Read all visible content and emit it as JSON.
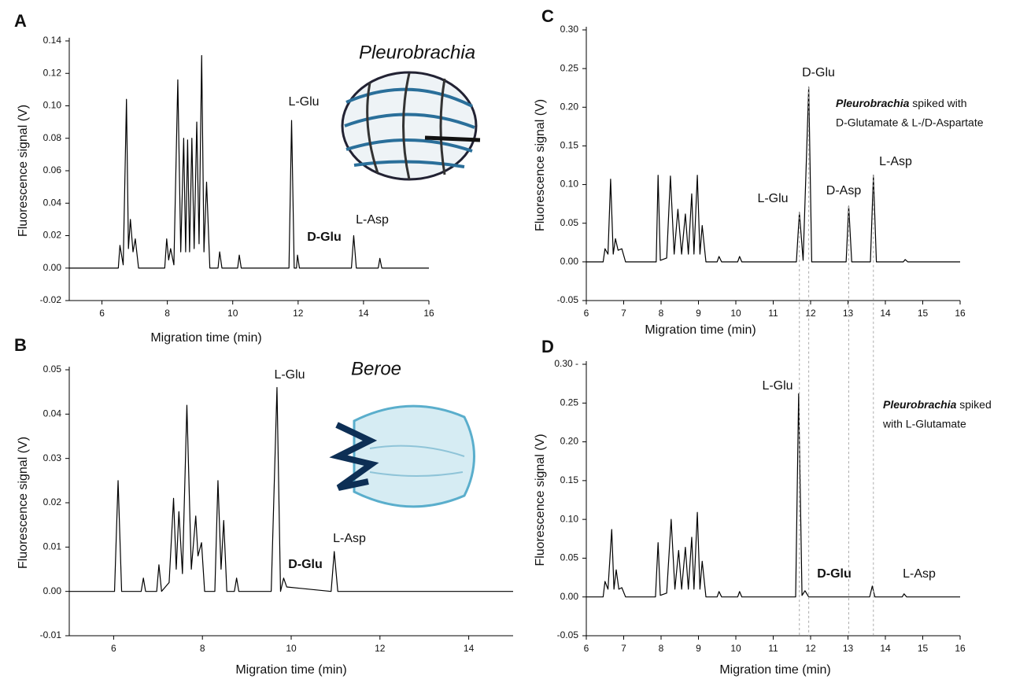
{
  "chart_data": [
    {
      "type": "line",
      "panel_label": "A",
      "species": "Pleurobrachia",
      "xlabel": "Migration time (min)",
      "ylabel": "Fluorescence signal (V)",
      "xlim": [
        5,
        16
      ],
      "xticks": [
        6,
        8,
        10,
        12,
        14,
        16
      ],
      "ylim": [
        -0.02,
        0.14
      ],
      "yticks": [
        -0.02,
        {
          "value": 0,
          "label": "0.00"
        },
        0.02,
        0.04,
        0.06,
        0.08,
        {
          "value": 0.1,
          "label": "0.10"
        },
        0.12,
        0.14
      ],
      "color": "#000000",
      "x": [
        5,
        6.5,
        6.55,
        6.65,
        6.75,
        6.81,
        6.87,
        6.95,
        7.02,
        7.12,
        7.92,
        7.98,
        8.04,
        8.1,
        8.2,
        8.32,
        8.41,
        8.5,
        8.56,
        8.62,
        8.68,
        8.75,
        8.82,
        8.9,
        8.97,
        9.05,
        9.12,
        9.2,
        9.3,
        9.55,
        9.6,
        9.67,
        10.15,
        10.2,
        10.26,
        11.72,
        11.8,
        11.88,
        11.95,
        11.98,
        12.04,
        13.63,
        13.7,
        13.78,
        14.45,
        14.5,
        14.56,
        16
      ],
      "values": [
        0,
        0,
        0.014,
        0.002,
        0.104,
        0.012,
        0.03,
        0.01,
        0.018,
        0,
        0,
        0.018,
        0.005,
        0.012,
        0.002,
        0.116,
        0.01,
        0.08,
        0.01,
        0.079,
        0.01,
        0.08,
        0.012,
        0.09,
        0.015,
        0.131,
        0.01,
        0.053,
        0,
        0,
        0.01,
        0,
        0,
        0.008,
        0,
        0,
        0.091,
        0,
        0,
        0.008,
        0,
        0,
        0.02,
        0,
        0,
        0.006,
        0,
        0
      ],
      "annotations": [
        {
          "text": "L-Glu",
          "bold": false
        },
        {
          "text": "D-Glu",
          "bold": true
        },
        {
          "text": "L-Asp",
          "bold": false
        }
      ]
    },
    {
      "type": "line",
      "panel_label": "B",
      "species": "Beroe",
      "xlabel": "Migration time (min)",
      "ylabel": "Fluorescence signal (V)",
      "xlim": [
        5,
        15
      ],
      "xticks": [
        6,
        8,
        10,
        12,
        14
      ],
      "ylim": [
        -0.01,
        0.05
      ],
      "yticks": [
        -0.01,
        {
          "value": 0,
          "label": "0.00"
        },
        0.01,
        0.02,
        0.03,
        0.04,
        0.05
      ],
      "color": "#000000",
      "x": [
        5,
        6.02,
        6.1,
        6.18,
        6.62,
        6.67,
        6.72,
        6.97,
        7.02,
        7.08,
        7.25,
        7.35,
        7.41,
        7.47,
        7.55,
        7.65,
        7.75,
        7.85,
        7.9,
        7.98,
        8.05,
        8.28,
        8.35,
        8.42,
        8.48,
        8.55,
        8.72,
        8.77,
        8.82,
        9.55,
        9.68,
        9.76,
        9.83,
        9.9,
        10.9,
        10.97,
        11.05,
        15
      ],
      "values": [
        0,
        0,
        0.025,
        0,
        0,
        0.003,
        0,
        0,
        0.006,
        0,
        0.002,
        0.021,
        0.005,
        0.018,
        0.004,
        0.042,
        0.005,
        0.017,
        0.008,
        0.011,
        0,
        0,
        0.025,
        0.005,
        0.016,
        0,
        0,
        0.003,
        0,
        0,
        0.046,
        0,
        0.003,
        0.001,
        0,
        0.009,
        0,
        0
      ],
      "annotations": [
        {
          "text": "L-Glu",
          "bold": false
        },
        {
          "text": "D-Glu",
          "bold": true
        },
        {
          "text": "L-Asp",
          "bold": false
        }
      ]
    },
    {
      "type": "line",
      "panel_label": "C",
      "xlabel": "Migration time (min)",
      "ylabel": "Fluorescence signal (V)",
      "note": {
        "species": "Pleurobrachia",
        "lines": [
          "spiked with",
          "D-Glutamate & L-/D-Aspartate"
        ]
      },
      "xlim": [
        6,
        16
      ],
      "xticks": [
        6,
        7,
        8,
        9,
        10,
        11,
        12,
        13,
        14,
        15,
        16
      ],
      "ylim": [
        -0.05,
        0.3
      ],
      "yticks": [
        -0.05,
        {
          "value": 0,
          "label": "0.00"
        },
        0.05,
        {
          "value": 0.1,
          "label": "0.10"
        },
        0.15,
        {
          "value": 0.2,
          "label": "0.20"
        },
        0.25,
        {
          "value": 0.3,
          "label": "0.30"
        }
      ],
      "color": "#000000",
      "x": [
        6,
        6.45,
        6.5,
        6.58,
        6.65,
        6.72,
        6.78,
        6.85,
        6.95,
        7.05,
        7.87,
        7.92,
        7.98,
        8.15,
        8.25,
        8.35,
        8.45,
        8.55,
        8.65,
        8.73,
        8.82,
        8.88,
        8.97,
        9.04,
        9.1,
        9.2,
        9.5,
        9.55,
        9.62,
        10.05,
        10.1,
        10.16,
        11.62,
        11.7,
        11.8,
        11.95,
        12.03,
        12.95,
        13.02,
        13.1,
        13.6,
        13.68,
        13.76,
        14.48,
        14.53,
        14.6,
        16
      ],
      "values": [
        0,
        0,
        0.017,
        0.01,
        0.107,
        0.01,
        0.03,
        0.015,
        0.017,
        0,
        0,
        0.112,
        0.002,
        0.005,
        0.111,
        0.01,
        0.068,
        0.01,
        0.062,
        0.01,
        0.088,
        0.01,
        0.112,
        0.01,
        0.047,
        0,
        0,
        0.007,
        0,
        0,
        0.007,
        0,
        0,
        0.064,
        0.002,
        0.226,
        0,
        0,
        0.072,
        0,
        0,
        0.112,
        0,
        0,
        0.003,
        0,
        0
      ],
      "annotations": [
        {
          "text": "D-Glu",
          "bold": false
        },
        {
          "text": "L-Glu",
          "bold": false
        },
        {
          "text": "D-Asp",
          "bold": false
        },
        {
          "text": "L-Asp",
          "bold": false
        }
      ]
    },
    {
      "type": "line",
      "panel_label": "D",
      "xlabel": "Migration time (min)",
      "ylabel": "Fluorescence signal (V)",
      "note": {
        "species": "Pleurobrachia",
        "lines": [
          "spiked",
          "with L-Glutamate"
        ]
      },
      "xlim": [
        6,
        16
      ],
      "xticks": [
        6,
        7,
        8,
        9,
        10,
        11,
        12,
        13,
        14,
        15,
        16
      ],
      "ylim": [
        -0.05,
        0.3
      ],
      "yticks": [
        -0.05,
        {
          "value": 0,
          "label": "0.00"
        },
        0.05,
        {
          "value": 0.1,
          "label": "0.10"
        },
        0.15,
        {
          "value": 0.2,
          "label": "0.20"
        },
        0.25,
        {
          "value": 0.3,
          "label": "0.30 -"
        }
      ],
      "color": "#000000",
      "x": [
        6,
        6.45,
        6.5,
        6.58,
        6.68,
        6.74,
        6.8,
        6.87,
        6.95,
        7.05,
        7.85,
        7.92,
        7.98,
        8.15,
        8.27,
        8.37,
        8.47,
        8.55,
        8.65,
        8.73,
        8.82,
        8.88,
        8.97,
        9.04,
        9.1,
        9.2,
        9.5,
        9.55,
        9.62,
        10.05,
        10.1,
        10.16,
        11.6,
        11.68,
        11.77,
        11.85,
        11.95,
        13.58,
        13.65,
        13.72,
        14.45,
        14.5,
        14.57,
        16
      ],
      "values": [
        0,
        0,
        0.02,
        0.01,
        0.087,
        0.01,
        0.035,
        0.01,
        0.012,
        0,
        0,
        0.07,
        0.002,
        0.005,
        0.1,
        0.01,
        0.06,
        0.01,
        0.064,
        0.01,
        0.077,
        0.01,
        0.109,
        0.01,
        0.046,
        0,
        0,
        0.007,
        0,
        0,
        0.007,
        0,
        0,
        0.262,
        0.002,
        0.008,
        0,
        0,
        0.014,
        0,
        0,
        0.004,
        0,
        0
      ],
      "annotations": [
        {
          "text": "L-Glu",
          "bold": false
        },
        {
          "text": "D-Glu",
          "bold": true
        },
        {
          "text": "L-Asp",
          "bold": false
        }
      ]
    }
  ]
}
